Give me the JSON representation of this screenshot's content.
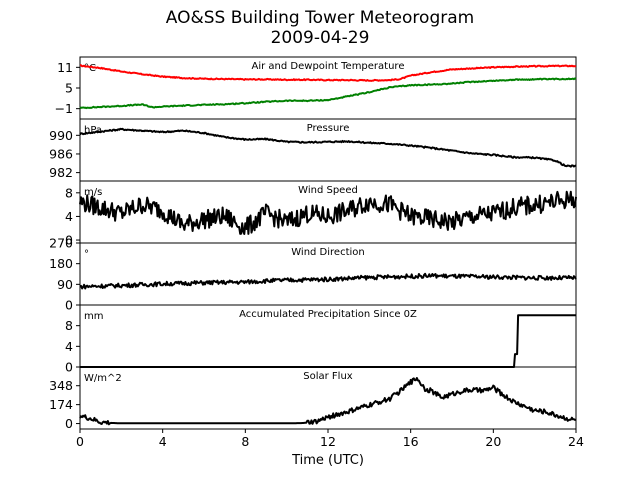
{
  "figure": {
    "title": "AO&SS Building Tower Meteorogram",
    "date": "2009-04-29",
    "xlabel": "Time (UTC)"
  },
  "chart_data": [
    {
      "type": "line",
      "panel": "temperature",
      "title": "Air and Dewpoint Temperature",
      "unit": "°C",
      "ylim": [
        -4,
        14
      ],
      "yticks": [
        11,
        5,
        -1
      ],
      "xlim": [
        0,
        24
      ],
      "series": [
        {
          "color": "#ff0000",
          "x": [
            0,
            1,
            2,
            3,
            4,
            5,
            6,
            7,
            8,
            9,
            10,
            11,
            12,
            13,
            14,
            15,
            15.5,
            16,
            17,
            18,
            19,
            20,
            21,
            22,
            23,
            24
          ],
          "values": [
            11.5,
            10.8,
            9.8,
            9.0,
            8.3,
            7.9,
            7.7,
            7.6,
            7.5,
            7.5,
            7.4,
            7.4,
            7.3,
            7.3,
            7.2,
            7.3,
            7.6,
            8.6,
            9.6,
            10.4,
            10.7,
            11.0,
            11.2,
            11.3,
            11.4,
            11.4
          ]
        },
        {
          "color": "#008000",
          "x": [
            0,
            1,
            2,
            3,
            3.5,
            4,
            5,
            6,
            7,
            8,
            9,
            10,
            11,
            12,
            13,
            14,
            15,
            16,
            17,
            18,
            19,
            20,
            21,
            22,
            23,
            24
          ],
          "values": [
            -0.8,
            -0.5,
            -0.2,
            0.2,
            -0.6,
            -0.4,
            -0.1,
            0.1,
            0.3,
            0.6,
            1.0,
            1.3,
            1.3,
            1.5,
            2.6,
            3.8,
            5.2,
            5.8,
            6.0,
            6.3,
            6.8,
            7.1,
            7.4,
            7.5,
            7.6,
            7.7
          ]
        }
      ]
    },
    {
      "type": "line",
      "panel": "pressure",
      "title": "Pressure",
      "unit": "hPa",
      "ylim": [
        980.2,
        993.5
      ],
      "yticks": [
        990,
        986,
        982
      ],
      "xlim": [
        0,
        24
      ],
      "series": [
        {
          "color": "#000000",
          "x": [
            0,
            1,
            2,
            3,
            4,
            5,
            6,
            7,
            8,
            9,
            10,
            11,
            12,
            13,
            14,
            15,
            16,
            17,
            18,
            19,
            20,
            21,
            22,
            23,
            23.5,
            24
          ],
          "values": [
            990.3,
            990.8,
            991.3,
            991.0,
            990.7,
            991.0,
            990.5,
            989.6,
            989.1,
            989.2,
            988.6,
            988.5,
            988.6,
            988.7,
            988.4,
            988.2,
            987.8,
            987.3,
            986.7,
            986.1,
            985.8,
            985.3,
            985.2,
            984.6,
            983.4,
            983.4
          ]
        }
      ]
    },
    {
      "type": "line",
      "panel": "wind_speed",
      "title": "Wind Speed",
      "unit": "m/s",
      "ylim": [
        -0.5,
        10
      ],
      "yticks": [
        8,
        4,
        0
      ],
      "xlim": [
        0,
        24
      ],
      "series": [
        {
          "color": "#000000",
          "x": [
            0,
            1,
            2,
            3,
            4,
            5,
            6,
            7,
            8,
            9,
            10,
            11,
            12,
            13,
            14,
            15,
            16,
            17,
            18,
            19,
            20,
            21,
            22,
            23,
            24
          ],
          "values": [
            6.5,
            5.5,
            4.5,
            6.0,
            5.0,
            2.5,
            3.5,
            4.0,
            2.0,
            4.5,
            3.0,
            4.5,
            4.0,
            5.0,
            6.5,
            6.0,
            4.0,
            3.5,
            3.0,
            4.0,
            4.5,
            5.5,
            6.0,
            6.5,
            7.0
          ]
        }
      ]
    },
    {
      "type": "line",
      "panel": "wind_direction",
      "title": "Wind Direction",
      "unit": "°",
      "ylim": [
        0,
        270
      ],
      "yticks": [
        270,
        180,
        90,
        0
      ],
      "xlim": [
        0,
        24
      ],
      "series": [
        {
          "color": "#000000",
          "x": [
            0,
            2,
            4,
            6,
            8,
            9,
            10,
            12,
            14,
            16,
            17,
            18,
            20,
            22,
            24
          ],
          "values": [
            80,
            85,
            92,
            97,
            100,
            105,
            108,
            112,
            120,
            125,
            128,
            125,
            122,
            118,
            118
          ]
        }
      ]
    },
    {
      "type": "line",
      "panel": "precipitation",
      "title": "Accumulated Precipitation Since 0Z",
      "unit": "mm",
      "ylim": [
        0,
        12
      ],
      "yticks": [
        8,
        4,
        0
      ],
      "xlim": [
        0,
        24
      ],
      "series": [
        {
          "color": "#000000",
          "x": [
            0,
            21,
            21.05,
            21.15,
            21.2,
            21.3,
            24
          ],
          "values": [
            0,
            0,
            2.5,
            2.5,
            10,
            10,
            10
          ]
        }
      ]
    },
    {
      "type": "line",
      "panel": "solar_flux",
      "title": "Solar Flux",
      "unit": "W/m^2",
      "ylim": [
        -50,
        520
      ],
      "yticks": [
        348,
        174,
        0
      ],
      "xlim": [
        0,
        24
      ],
      "series": [
        {
          "color": "#000000",
          "x": [
            0,
            0.5,
            1,
            2,
            4,
            6,
            8,
            10,
            10.8,
            11.5,
            12,
            13,
            14,
            15,
            15.5,
            16,
            16.3,
            16.7,
            17,
            17.5,
            18,
            18.5,
            19,
            19.5,
            20,
            20.5,
            21,
            21.5,
            22,
            22.5,
            23,
            23.5,
            24
          ],
          "values": [
            70,
            45,
            10,
            2,
            2,
            2,
            2,
            2,
            5,
            20,
            60,
            110,
            170,
            230,
            300,
            380,
            420,
            320,
            300,
            240,
            270,
            300,
            310,
            300,
            330,
            260,
            200,
            160,
            120,
            110,
            80,
            50,
            30
          ]
        }
      ]
    }
  ],
  "xaxis": {
    "ticks": [
      0,
      4,
      8,
      12,
      16,
      20,
      24
    ],
    "tick_labels": [
      "0",
      "4",
      "8",
      "12",
      "16",
      "20",
      "24"
    ]
  }
}
